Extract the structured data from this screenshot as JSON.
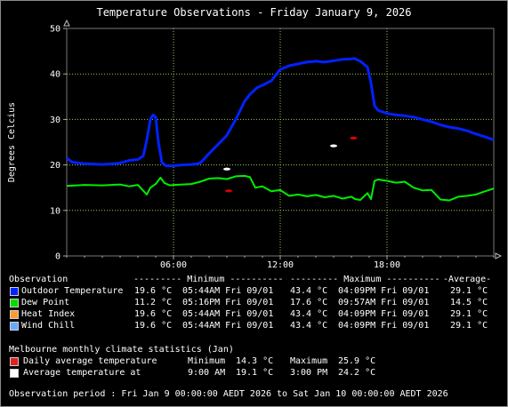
{
  "title": "Temperature Observations - Friday January 9, 2026",
  "chart_data": {
    "type": "line",
    "title": "Temperature Observations - Friday January 9, 2026",
    "ylabel": "Degrees Celcius",
    "xlabel": "",
    "ylim": [
      0,
      50
    ],
    "xlim": [
      0,
      24
    ],
    "yticks": [
      0,
      10,
      20,
      30,
      40,
      50
    ],
    "xticks": [
      6,
      12,
      18
    ],
    "xtick_labels": [
      "06:00",
      "12:00",
      "18:00"
    ],
    "grid": true,
    "background": "#000000",
    "series": [
      {
        "name": "Outdoor Temperature",
        "color": "#0022ff",
        "x": [
          0,
          0.3,
          1,
          2,
          3,
          3.5,
          4,
          4.3,
          4.5,
          4.7,
          4.85,
          5.0,
          5.15,
          5.35,
          5.6,
          5.9,
          6.5,
          7,
          7.5,
          8,
          8.5,
          9,
          9.5,
          10,
          10.3,
          10.7,
          11,
          11.5,
          12,
          12.5,
          13,
          13.5,
          14,
          14.5,
          15,
          15.5,
          16,
          16.15,
          16.5,
          16.9,
          17.1,
          17.3,
          17.5,
          18,
          18.5,
          19,
          19.5,
          20,
          20.5,
          21,
          21.5,
          22,
          22.5,
          23,
          23.5,
          24
        ],
        "values": [
          21.5,
          20.6,
          20.3,
          20.1,
          20.4,
          21,
          21.2,
          22,
          25.5,
          30,
          31,
          30.5,
          25,
          20.5,
          19.8,
          19.8,
          20,
          20.1,
          20.4,
          22.5,
          24.5,
          26.5,
          30,
          34,
          35.5,
          37,
          37.5,
          38.5,
          41,
          41.8,
          42.2,
          42.6,
          42.8,
          42.6,
          42.9,
          43.2,
          43.3,
          43.4,
          42.8,
          41.5,
          38,
          33,
          32,
          31.3,
          31,
          30.8,
          30.5,
          30,
          29.5,
          28.8,
          28.3,
          28,
          27.5,
          26.8,
          26.2,
          25.5
        ]
      },
      {
        "name": "Dew Point",
        "color": "#00ee00",
        "x": [
          0,
          1,
          2,
          3,
          3.5,
          4,
          4.5,
          4.7,
          5.0,
          5.27,
          5.5,
          5.8,
          6.0,
          7,
          7.5,
          8,
          8.5,
          9,
          9.5,
          10,
          10.3,
          10.6,
          11,
          11.5,
          12,
          12.5,
          13,
          13.5,
          14,
          14.5,
          15,
          15.5,
          16,
          16.2,
          16.5,
          16.9,
          17.1,
          17.3,
          17.5,
          18,
          18.5,
          19,
          19.5,
          20,
          20.5,
          21,
          21.5,
          22,
          22.5,
          23,
          23.5,
          24
        ],
        "values": [
          15.4,
          15.6,
          15.5,
          15.7,
          15.3,
          15.6,
          13.5,
          15,
          15.8,
          17.2,
          16,
          15.5,
          15.6,
          15.8,
          16.3,
          17,
          17.1,
          16.9,
          17.5,
          17.6,
          17.3,
          15,
          15.3,
          14.2,
          14.5,
          13.2,
          13.5,
          13.1,
          13.4,
          12.9,
          13.2,
          12.6,
          13.0,
          12.5,
          12.3,
          13.8,
          12.5,
          16.5,
          16.8,
          16.5,
          16.1,
          16.3,
          15,
          14.4,
          14.5,
          12.4,
          12.2,
          13.0,
          13.2,
          13.5,
          14.2,
          14.8
        ]
      }
    ],
    "markers": [
      {
        "name": "Daily average temperature Minimum",
        "color": "#dd0000",
        "x": 9.1,
        "y": 14.3
      },
      {
        "name": "Daily average temperature Maximum",
        "color": "#dd0000",
        "x": 16.12,
        "y": 25.9
      },
      {
        "name": "Average temperature at 9:00 AM",
        "color": "#ffffff",
        "x": 9.0,
        "y": 19.1
      },
      {
        "name": "Average temperature at 3:00 PM",
        "color": "#ffffff",
        "x": 15.0,
        "y": 24.2
      }
    ]
  },
  "table": {
    "header": {
      "observation": "Observation",
      "minimum": "--------- Minimum ----------",
      "maximum": "--------- Maximum ----------",
      "average": "-Average-"
    },
    "rows": [
      {
        "label": "Outdoor Temperature",
        "color": "#0022ff",
        "min_val": "19.6 °C",
        "min_time": "05:44AM Fri 09/01",
        "max_val": "43.4 °C",
        "max_time": "04:09PM Fri 09/01",
        "avg": "29.1 °C"
      },
      {
        "label": "Dew Point",
        "color": "#00dd00",
        "min_val": "11.2 °C",
        "min_time": "05:16PM Fri 09/01",
        "max_val": "17.6 °C",
        "max_time": "09:57AM Fri 09/01",
        "avg": "14.5 °C"
      },
      {
        "label": "Heat Index",
        "color": "#ff9933",
        "min_val": "19.6 °C",
        "min_time": "05:44AM Fri 09/01",
        "max_val": "43.4 °C",
        "max_time": "04:09PM Fri 09/01",
        "avg": "29.1 °C"
      },
      {
        "label": "Wind Chill",
        "color": "#66aaff",
        "min_val": "19.6 °C",
        "min_time": "05:44AM Fri 09/01",
        "max_val": "43.4 °C",
        "max_time": "04:09PM Fri 09/01",
        "avg": "29.1 °C"
      }
    ]
  },
  "climate": {
    "heading": "Melbourne monthly climate statistics (Jan)",
    "rows": [
      {
        "label": "Daily average temperature",
        "color": "#dd2222",
        "col1_label": "Minimum",
        "col1_value": "14.3 °C",
        "col2_label": "Maximum",
        "col2_value": "25.9 °C"
      },
      {
        "label": "Average temperature at",
        "color": "#ffffff",
        "col1_label": "9:00 AM",
        "col1_value": "19.1 °C",
        "col2_label": "3:00 PM",
        "col2_value": "24.2 °C"
      }
    ]
  },
  "footer": "Observation period : Fri Jan 9 00:00:00 AEDT 2026 to Sat Jan 10 00:00:00 AEDT 2026"
}
